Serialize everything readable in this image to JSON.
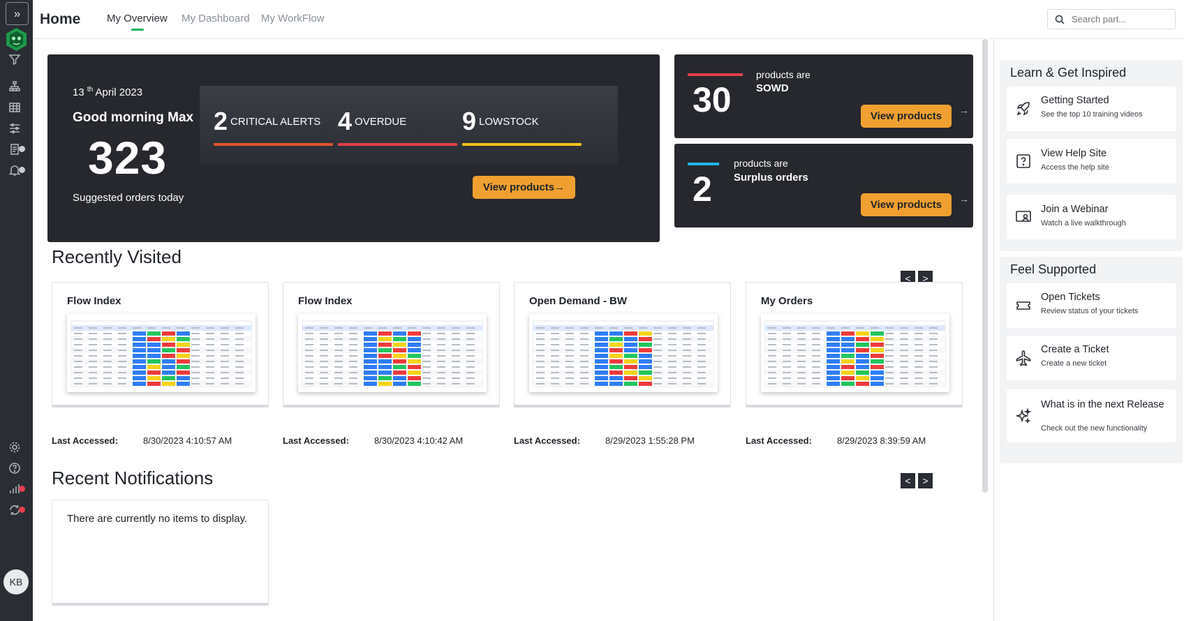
{
  "rail": {
    "expand_icon": "double-chevron-right",
    "avatar_initials": "KB",
    "badge_grey": "#c9ccd1",
    "badge_red": "#e53e4c"
  },
  "header": {
    "title": "Home",
    "tabs": [
      {
        "label": "My Overview",
        "active": true
      },
      {
        "label": "My Dashboard",
        "active": false
      },
      {
        "label": "My WorkFlow",
        "active": false
      }
    ],
    "search_placeholder": "Search part..."
  },
  "hero": {
    "date_day": "13",
    "date_suffix": "th",
    "date_rest": "April 2023",
    "greeting": "Good morning Max",
    "suggested_count": "323",
    "suggested_label": "Suggested orders today",
    "alerts": [
      {
        "count": "2",
        "label": "CRITICAL ALERTS",
        "color": "#e2542e"
      },
      {
        "count": "4",
        "label": "OVERDUE",
        "color": "#e23f4a"
      },
      {
        "count": "9",
        "label": "LOWSTOCK",
        "color": "#f2c21b"
      }
    ],
    "button_label": "View products→"
  },
  "stats": [
    {
      "count": "30",
      "line1": "products are",
      "line2": "SOWD",
      "accent": "#e23f4a",
      "button_label": "View products",
      "arrow": "→"
    },
    {
      "count": "2",
      "line1": "products are",
      "line2": "Surplus orders",
      "accent": "#1fb6e8",
      "button_label": "View products",
      "arrow": "→"
    }
  ],
  "recently_visited": {
    "title": "Recently Visited",
    "prev": "<",
    "next": ">",
    "accessed_label": "Last Accessed:",
    "cards": [
      {
        "title": "Flow Index",
        "last_accessed": "8/30/2023 4:10:57 AM"
      },
      {
        "title": "Flow Index",
        "last_accessed": "8/30/2023 4:10:42 AM"
      },
      {
        "title": "Open Demand - BW",
        "last_accessed": "8/29/2023 1:55:28 PM"
      },
      {
        "title": "My Orders",
        "last_accessed": "8/29/2023 8:39:59 AM"
      }
    ]
  },
  "notifications": {
    "title": "Recent Notifications",
    "prev": "<",
    "next": ">",
    "empty_text": "There are currently no items to display."
  },
  "learn": {
    "title": "Learn & Get Inspired",
    "items": [
      {
        "title": "Getting Started",
        "subtitle": "See the top 10 training videos",
        "icon": "rocket-icon"
      },
      {
        "title": "View Help Site",
        "subtitle": "Access the help site",
        "icon": "help-icon"
      },
      {
        "title": "Join a Webinar",
        "subtitle": "Watch a live walkthrough",
        "icon": "webinar-icon"
      }
    ]
  },
  "support": {
    "title": "Feel Supported",
    "items": [
      {
        "title": "Open Tickets",
        "subtitle": "Review status of your tickets",
        "icon": "ticket-icon"
      },
      {
        "title": "Create a Ticket",
        "subtitle": "Create a new ticket",
        "icon": "plane-icon"
      },
      {
        "title": "What is in the next Release",
        "subtitle": "Check out the new functionality",
        "icon": "sparkle-icon"
      }
    ]
  }
}
